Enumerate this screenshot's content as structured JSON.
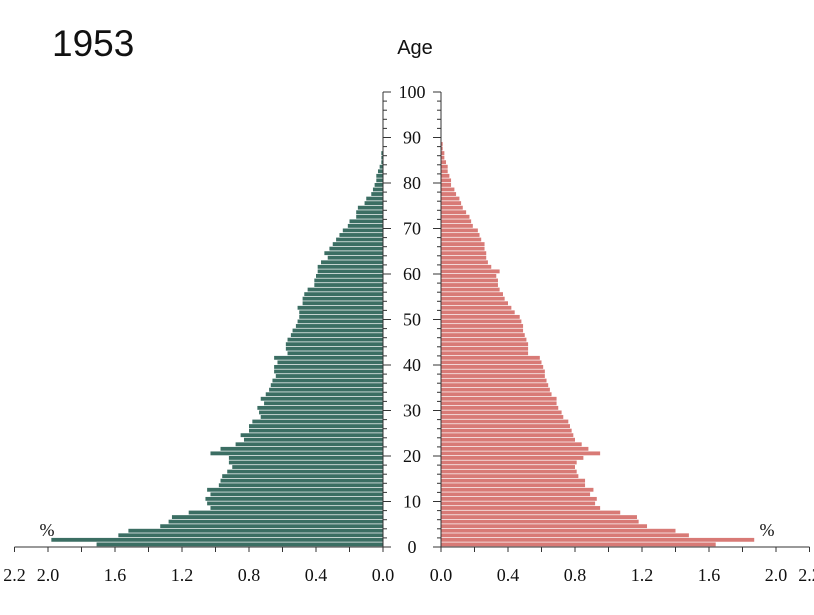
{
  "chart_data": {
    "type": "bar",
    "title": "1953",
    "age_axis_label": "Age",
    "x_unit_label": "%",
    "age_ticks": [
      "0",
      "10",
      "20",
      "30",
      "40",
      "50",
      "60",
      "70",
      "80",
      "90",
      "100"
    ],
    "left_x_ticks": [
      "2.2",
      "2.0",
      "1.6",
      "1.2",
      "0.8",
      "0.4",
      "0.0"
    ],
    "right_x_ticks": [
      "0.0",
      "0.4",
      "0.8",
      "1.2",
      "1.6",
      "2.0",
      "2.2"
    ],
    "xlim": [
      0,
      2.2
    ],
    "ylim": [
      0,
      100
    ],
    "grid": false,
    "colors": {
      "left_series": "#3b6e63",
      "right_series": "#d87a76"
    },
    "ages": [
      0,
      1,
      2,
      3,
      4,
      5,
      6,
      7,
      8,
      9,
      10,
      11,
      12,
      13,
      14,
      15,
      16,
      17,
      18,
      19,
      20,
      21,
      22,
      23,
      24,
      25,
      26,
      27,
      28,
      29,
      30,
      31,
      32,
      33,
      34,
      35,
      36,
      37,
      38,
      39,
      40,
      41,
      42,
      43,
      44,
      45,
      46,
      47,
      48,
      49,
      50,
      51,
      52,
      53,
      54,
      55,
      56,
      57,
      58,
      59,
      60,
      61,
      62,
      63,
      64,
      65,
      66,
      67,
      68,
      69,
      70,
      71,
      72,
      73,
      74,
      75,
      76,
      77,
      78,
      79,
      80,
      81,
      82,
      83,
      84,
      85,
      86,
      87,
      88,
      89
    ],
    "series": [
      {
        "values": [
          1.71,
          1.98,
          1.58,
          1.52,
          1.33,
          1.28,
          1.26,
          1.16,
          1.03,
          1.05,
          1.06,
          1.03,
          1.05,
          0.98,
          0.97,
          0.96,
          0.93,
          0.9,
          0.92,
          0.92,
          1.03,
          0.97,
          0.88,
          0.83,
          0.85,
          0.8,
          0.8,
          0.78,
          0.73,
          0.74,
          0.75,
          0.71,
          0.73,
          0.7,
          0.68,
          0.67,
          0.66,
          0.64,
          0.65,
          0.65,
          0.63,
          0.65,
          0.57,
          0.58,
          0.58,
          0.57,
          0.55,
          0.54,
          0.52,
          0.51,
          0.5,
          0.5,
          0.51,
          0.48,
          0.48,
          0.47,
          0.45,
          0.41,
          0.41,
          0.4,
          0.39,
          0.39,
          0.37,
          0.33,
          0.35,
          0.32,
          0.3,
          0.28,
          0.26,
          0.24,
          0.21,
          0.2,
          0.16,
          0.16,
          0.15,
          0.11,
          0.1,
          0.07,
          0.06,
          0.05,
          0.04,
          0.04,
          0.03,
          0.02,
          0.01,
          0.01,
          0.01,
          0.0,
          0.0,
          0.0
        ]
      },
      {
        "values": [
          1.64,
          1.87,
          1.48,
          1.4,
          1.23,
          1.18,
          1.17,
          1.07,
          0.95,
          0.92,
          0.93,
          0.89,
          0.91,
          0.86,
          0.86,
          0.82,
          0.81,
          0.8,
          0.81,
          0.85,
          0.95,
          0.88,
          0.84,
          0.8,
          0.79,
          0.78,
          0.77,
          0.76,
          0.73,
          0.72,
          0.7,
          0.69,
          0.69,
          0.66,
          0.65,
          0.64,
          0.63,
          0.62,
          0.62,
          0.61,
          0.6,
          0.59,
          0.52,
          0.52,
          0.52,
          0.51,
          0.5,
          0.49,
          0.49,
          0.48,
          0.47,
          0.44,
          0.42,
          0.4,
          0.38,
          0.37,
          0.35,
          0.34,
          0.34,
          0.33,
          0.35,
          0.3,
          0.28,
          0.27,
          0.27,
          0.26,
          0.26,
          0.24,
          0.23,
          0.22,
          0.19,
          0.18,
          0.17,
          0.15,
          0.13,
          0.12,
          0.11,
          0.09,
          0.08,
          0.06,
          0.06,
          0.05,
          0.04,
          0.04,
          0.03,
          0.02,
          0.02,
          0.01,
          0.01,
          0.0
        ]
      }
    ]
  }
}
